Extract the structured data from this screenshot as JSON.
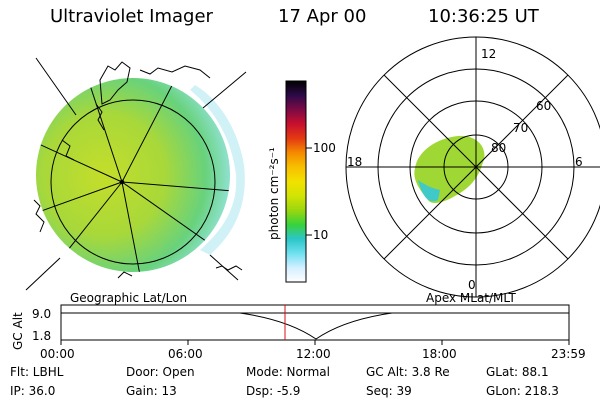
{
  "header": {
    "title": "Ultraviolet Imager",
    "date": "17 Apr 00",
    "time": "10:36:25 UT"
  },
  "colorbar": {
    "unit_label": "photon cm⁻²s⁻¹",
    "ticks": [
      "100",
      "10"
    ],
    "stops": [
      "#ffffff",
      "#d4f0ff",
      "#6fe0f0",
      "#2bc6c8",
      "#39d23a",
      "#9bd60e",
      "#d2e404",
      "#f2e100",
      "#f8c000",
      "#f58a00",
      "#e43a12",
      "#c8102e",
      "#7d0a44",
      "#2b0a48",
      "#000000"
    ]
  },
  "earth_view": {
    "label": "Geographic Lat/Lon"
  },
  "polar_plot": {
    "label": "Apex MLat/MLT",
    "mlt_labels": [
      "12",
      "18",
      "6",
      "0"
    ],
    "lat_labels": [
      "60",
      "70",
      "80"
    ]
  },
  "timeline": {
    "y_label": "GC Alt",
    "y_ticks": [
      "9.0",
      "1.8"
    ],
    "x_ticks": [
      "00:00",
      "06:00",
      "12:00",
      "18:00",
      "23:59"
    ]
  },
  "status": {
    "filter": "Flt: LBHL",
    "ip": "IP: 36.0",
    "door": "Door: Open",
    "gain": "Gain: 13",
    "mode": "Mode: Normal",
    "dsp": "Dsp:   -5.9",
    "gc_alt": "GC Alt: 3.8 Re",
    "seq": "Seq: 39",
    "glat": "GLat:  88.1",
    "glon": "GLon: 218.3"
  }
}
